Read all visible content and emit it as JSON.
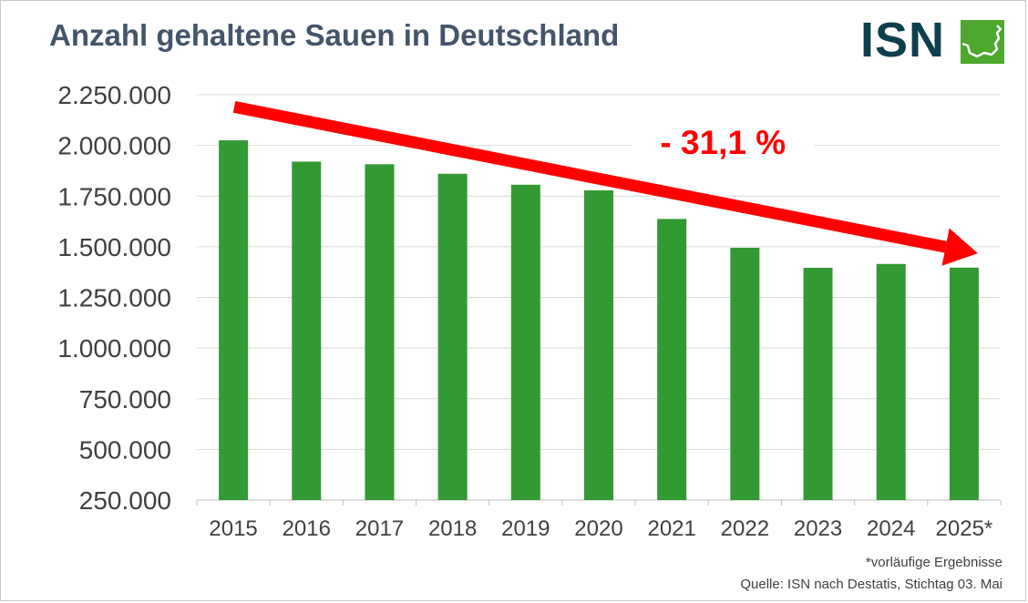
{
  "header": {
    "title": "Anzahl gehaltene Sauen in Deutschland",
    "logo_text": "ISN"
  },
  "chart_data": {
    "type": "bar",
    "title": "Anzahl gehaltene Sauen in Deutschland",
    "categories": [
      "2015",
      "2016",
      "2017",
      "2018",
      "2019",
      "2020",
      "2021",
      "2022",
      "2023",
      "2024",
      "2025*"
    ],
    "values": [
      2025000,
      1920000,
      1907000,
      1860000,
      1806000,
      1778000,
      1637000,
      1495000,
      1396000,
      1415000,
      1397000
    ],
    "ylim": [
      250000,
      2250000
    ],
    "yticks": [
      250000,
      500000,
      750000,
      1000000,
      1250000,
      1500000,
      1750000,
      2000000,
      2250000
    ],
    "ytick_labels": [
      "250.000",
      "500.000",
      "750.000",
      "1.000.000",
      "1.250.000",
      "1.500.000",
      "1.750.000",
      "2.000.000",
      "2.250.000"
    ],
    "grid": true,
    "bar_color": "#339933",
    "annotation": {
      "text": "- 31,1 %",
      "color": "#ff0000",
      "arrow_from": {
        "category": "2015",
        "value": 2190000
      },
      "arrow_to": {
        "category": "2025*",
        "value": 1490000
      }
    }
  },
  "footnotes": {
    "note": "*vorläufige Ergebnisse",
    "source": "Quelle: ISN nach Destatis, Stichtag 03. Mai"
  },
  "colors": {
    "title": "#44546a",
    "logo_dark": "#0e3f4c",
    "logo_green": "#4ea72e",
    "grid": "#d9d9d9",
    "axis_text": "#404040"
  }
}
